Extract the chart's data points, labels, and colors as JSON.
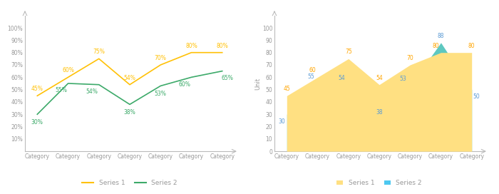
{
  "categories": [
    "Category",
    "Category",
    "Category",
    "Category",
    "Category",
    "Category",
    "Category"
  ],
  "series1": [
    45,
    60,
    75,
    54,
    70,
    80,
    80
  ],
  "series2": [
    30,
    55,
    54,
    38,
    53,
    60,
    65
  ],
  "series2_area": [
    30,
    55,
    54,
    38,
    53,
    88,
    50
  ],
  "line_color1": "#FFC107",
  "line_color2": "#3DAA6A",
  "area_color1": "#FFE082",
  "area_color2_fill": "#5EC8C0",
  "area_color2_legend": "#4DC8F0",
  "bg_color": "#FFFFFF",
  "label_color_orange": "#FFA500",
  "label_color_blue": "#5B9BD5",
  "axis_color": "#BBBBBB",
  "tick_color": "#999999",
  "ylabel_right": "Unit",
  "legend_line": [
    "Series 1",
    "Series 2"
  ],
  "legend_area": [
    "Series 1",
    "Series 2"
  ]
}
